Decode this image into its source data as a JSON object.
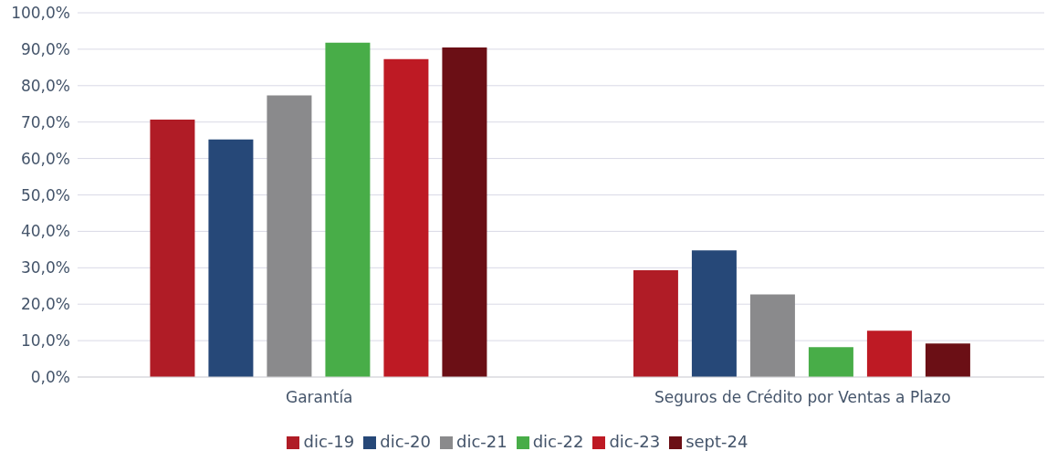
{
  "chart_data": {
    "type": "bar",
    "categories": [
      "Garantía",
      "Seguros de Crédito por Ventas a Plazo"
    ],
    "series": [
      {
        "name": "dic-19",
        "color": "#b01c26",
        "values": [
          70.7,
          29.3
        ]
      },
      {
        "name": "dic-20",
        "color": "#264878",
        "values": [
          65.2,
          34.8
        ]
      },
      {
        "name": "dic-21",
        "color": "#8a8a8c",
        "values": [
          77.3,
          22.7
        ]
      },
      {
        "name": "dic-22",
        "color": "#48ad48",
        "values": [
          91.8,
          8.2
        ]
      },
      {
        "name": "dic-23",
        "color": "#be1a24",
        "values": [
          87.3,
          12.7
        ]
      },
      {
        "name": "sept-24",
        "color": "#6b0f15",
        "values": [
          90.5,
          9.2
        ]
      }
    ],
    "ylim": [
      0,
      100
    ],
    "yticks": [
      {
        "value": 0,
        "label": "0,0%"
      },
      {
        "value": 10,
        "label": "10,0%"
      },
      {
        "value": 20,
        "label": "20,0%"
      },
      {
        "value": 30,
        "label": "30,0%"
      },
      {
        "value": 40,
        "label": "40,0%"
      },
      {
        "value": 50,
        "label": "50,0%"
      },
      {
        "value": 60,
        "label": "60,0%"
      },
      {
        "value": 70,
        "label": "70,0%"
      },
      {
        "value": 80,
        "label": "80,0%"
      },
      {
        "value": 90,
        "label": "90,0%"
      },
      {
        "value": 100,
        "label": "100,0%"
      }
    ],
    "grid": "y",
    "legend": "bottom"
  }
}
